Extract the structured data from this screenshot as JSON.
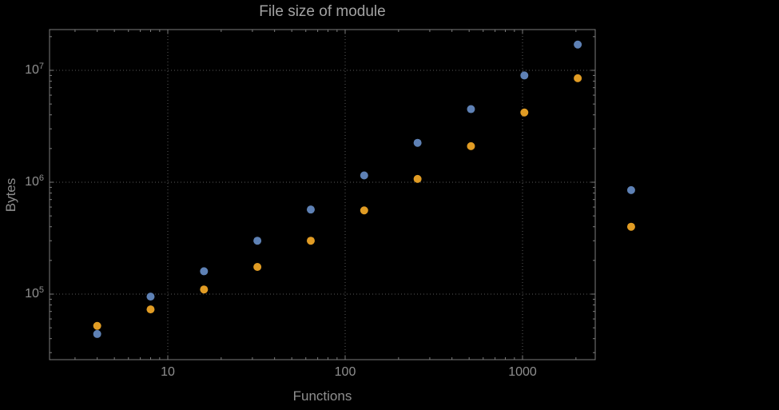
{
  "chart_data": {
    "type": "scatter",
    "title": "File size of module",
    "xlabel": "Functions",
    "ylabel": "Bytes",
    "x_scale": "log",
    "y_scale": "log",
    "grid": "dotted",
    "legend": "none",
    "background": "#000000",
    "text_color": "#8f8f8f",
    "frame_color": "#7d7d7d",
    "grid_color": "#5a5a5a",
    "x_ticks": [
      10,
      100,
      1000
    ],
    "x_tick_labels": [
      "10",
      "100",
      "1000"
    ],
    "y_ticks": [
      100000,
      1000000,
      10000000
    ],
    "y_tick_labels": [
      {
        "base": "10",
        "exp": "5"
      },
      {
        "base": "10",
        "exp": "6"
      },
      {
        "base": "10",
        "exp": "7"
      }
    ],
    "xlim": [
      2.2,
      2570
    ],
    "ylim": [
      26000,
      23000000
    ],
    "x": [
      4,
      8,
      16,
      32,
      64,
      128,
      256,
      512,
      1024,
      2048,
      4096
    ],
    "series": [
      {
        "name": "blue-series",
        "color": "#5e81b5",
        "values": [
          44000,
          95000,
          160000,
          300000,
          570000,
          1150000,
          2250000,
          4500000,
          9000000,
          17000000,
          850000
        ]
      },
      {
        "name": "orange-series",
        "color": "#e19c24",
        "values": [
          52000,
          73000,
          110000,
          175000,
          300000,
          560000,
          1070000,
          2100000,
          4200000,
          8500000,
          400000
        ]
      }
    ]
  }
}
